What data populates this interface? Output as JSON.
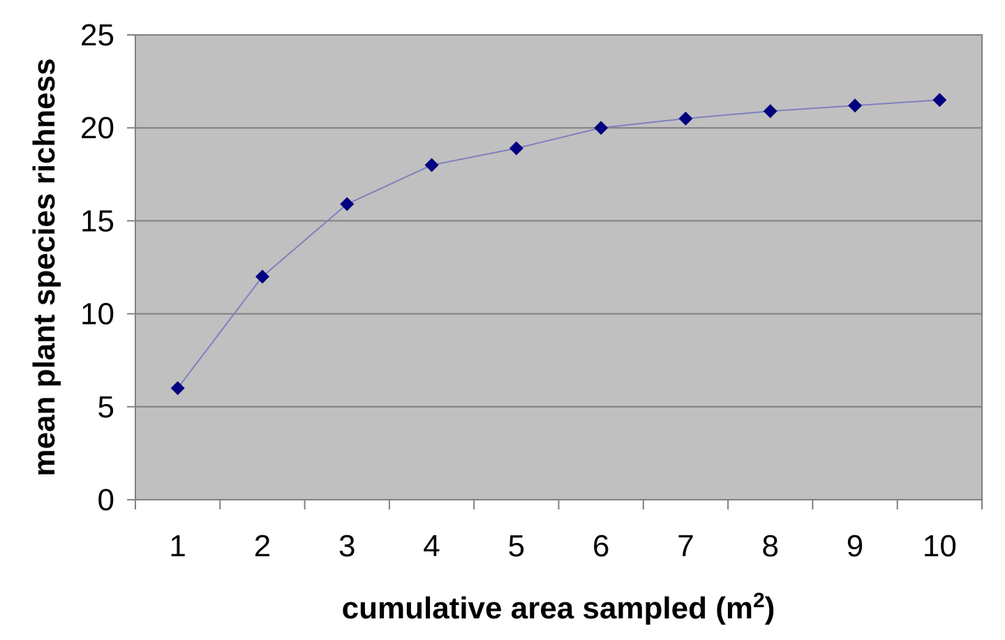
{
  "chart_data": {
    "type": "line",
    "title": "",
    "xlabel": "cumulative area sampled (m",
    "xlabel_sup": "2",
    "xlabel_close": ")",
    "ylabel": "mean plant species richness",
    "categories": [
      "1",
      "2",
      "3",
      "4",
      "5",
      "6",
      "7",
      "8",
      "9",
      "10"
    ],
    "series": [
      {
        "name": "mean plant species richness",
        "values": [
          6.0,
          12.0,
          15.9,
          18.0,
          18.9,
          20.0,
          20.5,
          20.9,
          21.2,
          21.5
        ]
      }
    ],
    "ylim": [
      0,
      25
    ],
    "yticks": [
      "0",
      "5",
      "10",
      "15",
      "20",
      "25"
    ],
    "ytick_values": [
      0,
      5,
      10,
      15,
      20,
      25
    ],
    "grid": true,
    "colors": {
      "plot_background": "#c0c0c0",
      "gridline": "#7f7f7f",
      "line": "#7f7fbf",
      "marker": "#000080",
      "axis": "#808080"
    }
  }
}
